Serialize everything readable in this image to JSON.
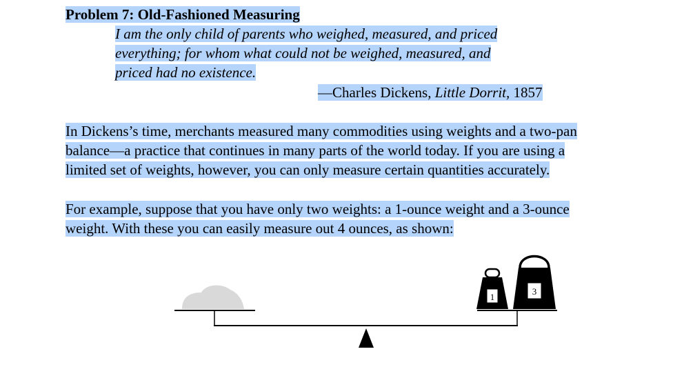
{
  "problem": {
    "title": "Problem 7: Old-Fashioned Measuring"
  },
  "epigraph": {
    "lines": [
      "I am the only child of parents who weighed, measured, and priced",
      "everything; for whom what could not be weighed, measured, and",
      "priced had no existence."
    ],
    "attribution_prefix": "—Charles Dickens, ",
    "attribution_book": "Little Dorrit,",
    "attribution_year": " 1857"
  },
  "paragraphs": [
    {
      "lines": [
        "In Dickens’s time, merchants measured many commodities using weights and a two-pan",
        "balance—a practice that continues in many parts of the world today. If you are using a",
        "limited set of weights, however, you can only measure certain quantities accurately."
      ]
    },
    {
      "lines": [
        "For example, suppose that you have only two weights: a 1-ounce weight and a 3-ounce",
        "weight.  With these you can easily measure out 4 ounces, as shown:"
      ]
    }
  ],
  "figure": {
    "weight_small_label": "1",
    "weight_large_label": "3"
  },
  "colors": {
    "selection": "#b5d4fb",
    "pile": "#d9d9d9",
    "ink": "#000000"
  }
}
